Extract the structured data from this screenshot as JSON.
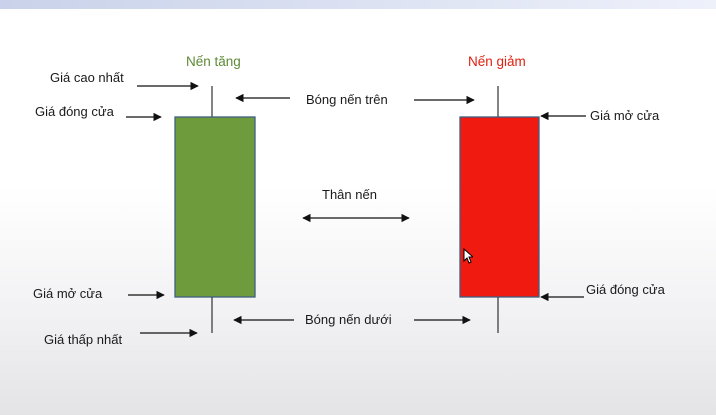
{
  "colors": {
    "bullish_body": "#6e9b3c",
    "bearish_body": "#f01a10",
    "bullish_title": "#5e8a35",
    "bearish_title": "#e02010",
    "wick": "#404040",
    "arrow": "#111111"
  },
  "bullish": {
    "title": "Nến tăng",
    "high_label": "Giá cao nhất",
    "close_label": "Giá đóng cửa",
    "open_label": "Giá mở cửa",
    "low_label": "Giá thấp nhất"
  },
  "bearish": {
    "title": "Nến giảm",
    "open_label": "Giá mở cửa",
    "close_label": "Giá đóng cửa"
  },
  "center": {
    "upper_shadow_label": "Bóng nến trên",
    "body_label": "Thân nến",
    "lower_shadow_label": "Bóng nến dưới"
  }
}
